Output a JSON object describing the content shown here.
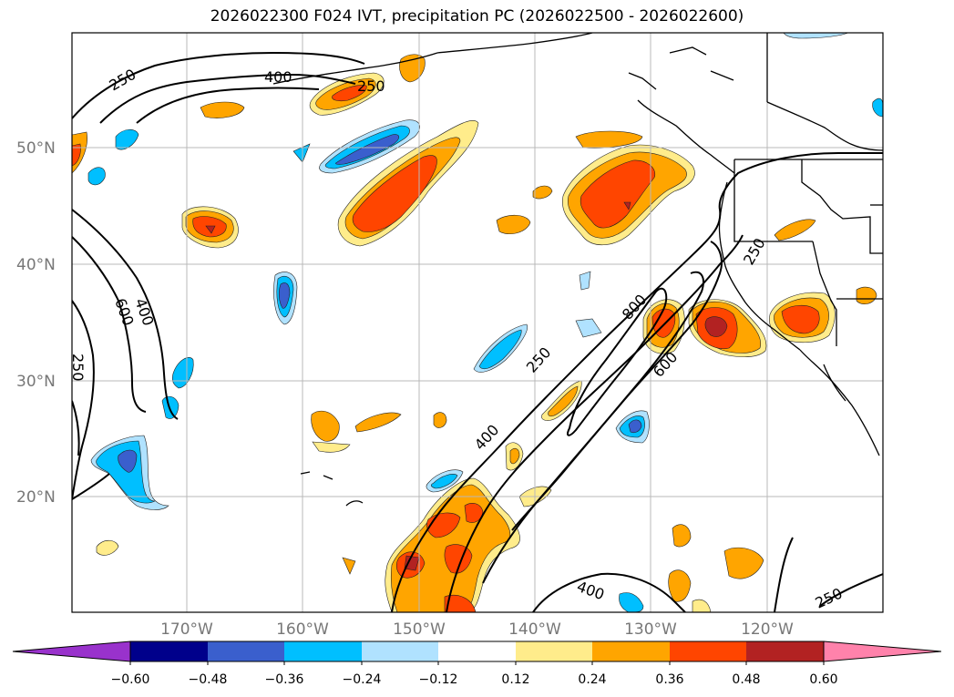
{
  "title": "2026022300 F024 IVT, precipitation PC (2026022500 - 2026022600)",
  "lat_labels": [
    "50°N",
    "40°N",
    "30°N",
    "20°N"
  ],
  "lon_labels": [
    "170°W",
    "160°W",
    "150°W",
    "140°W",
    "130°W",
    "120°W"
  ],
  "colorbar": {
    "ticks": [
      "−0.60",
      "−0.48",
      "−0.36",
      "−0.24",
      "−0.12",
      "0.12",
      "0.24",
      "0.36",
      "0.48",
      "0.60"
    ],
    "colors": {
      "lt_-060": "#9932cc",
      "-060_-048": "#00008b",
      "-048_-036": "#3a5fcd",
      "-036_-024": "#00bfff",
      "-024_-012": "#b0e2ff",
      "-012_012": "#ffffff",
      "012_024": "#ffec8b",
      "024_036": "#ffa500",
      "036_048": "#ff4500",
      "048_060": "#b22222",
      "gt_060": "#ff82ab"
    }
  },
  "ivt_contour_labels": {
    "c250": "250",
    "c400": "400",
    "c600": "600",
    "c800": "800"
  },
  "ivt_contour_levels": [
    250,
    400,
    600,
    800
  ]
}
